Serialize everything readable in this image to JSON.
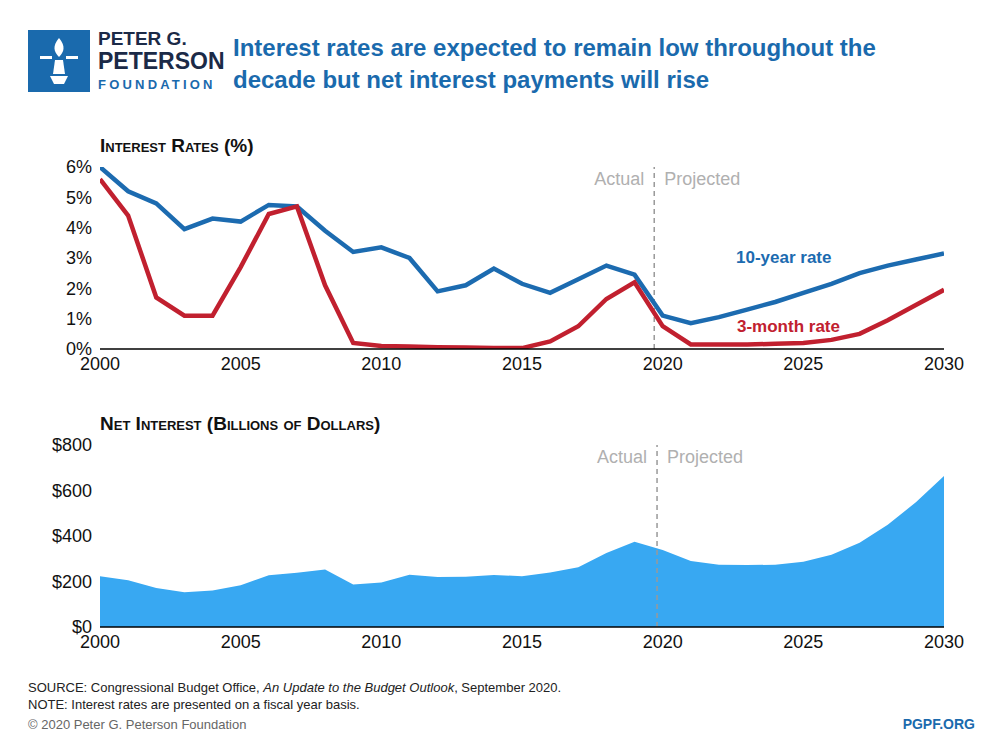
{
  "logo": {
    "lines": [
      "PETER G.",
      "PETERSON"
    ],
    "sub": "FOUNDATION"
  },
  "title": "Interest rates are expected to remain low throughout the decade but net interest payments will rise",
  "chart_data": [
    {
      "type": "line",
      "title": "Interest Rates (%)",
      "x": [
        2000,
        2001,
        2002,
        2003,
        2004,
        2005,
        2006,
        2007,
        2008,
        2009,
        2010,
        2011,
        2012,
        2013,
        2014,
        2015,
        2016,
        2017,
        2018,
        2019,
        2020,
        2021,
        2022,
        2023,
        2024,
        2025,
        2026,
        2027,
        2028,
        2029,
        2030
      ],
      "series": [
        {
          "name": "10-year rate",
          "color": "#1c6bb0",
          "values": [
            6.0,
            5.2,
            4.8,
            3.95,
            4.3,
            4.2,
            4.75,
            4.7,
            3.9,
            3.2,
            3.35,
            3.0,
            1.9,
            2.1,
            2.65,
            2.15,
            1.85,
            2.3,
            2.75,
            2.45,
            1.1,
            0.85,
            1.05,
            1.3,
            1.55,
            1.85,
            2.15,
            2.5,
            2.75,
            2.95,
            3.15
          ]
        },
        {
          "name": "3-month rate",
          "color": "#c1202f",
          "values": [
            5.6,
            4.4,
            1.7,
            1.1,
            1.1,
            2.7,
            4.45,
            4.7,
            2.1,
            0.2,
            0.1,
            0.08,
            0.06,
            0.05,
            0.03,
            0.03,
            0.25,
            0.75,
            1.65,
            2.2,
            0.75,
            0.15,
            0.15,
            0.15,
            0.17,
            0.2,
            0.3,
            0.5,
            0.95,
            1.45,
            1.95
          ]
        }
      ],
      "xlim": [
        2000,
        2030
      ],
      "xticks": [
        2000,
        2005,
        2010,
        2015,
        2020,
        2025,
        2030
      ],
      "ylim": [
        0,
        6
      ],
      "yticks": [
        {
          "value": 0,
          "label": "0%"
        },
        {
          "value": 1,
          "label": "1%"
        },
        {
          "value": 2,
          "label": "2%"
        },
        {
          "value": 3,
          "label": "3%"
        },
        {
          "value": 4,
          "label": "4%"
        },
        {
          "value": 5,
          "label": "5%"
        },
        {
          "value": 6,
          "label": "6%"
        }
      ],
      "grid": false,
      "divider": {
        "x": 2019.7,
        "left_label": "Actual",
        "right_label": "Projected"
      }
    },
    {
      "type": "area",
      "title": "Net Interest (Billions of Dollars)",
      "x": [
        2000,
        2001,
        2002,
        2003,
        2004,
        2005,
        2006,
        2007,
        2008,
        2009,
        2010,
        2011,
        2012,
        2013,
        2014,
        2015,
        2016,
        2017,
        2018,
        2019,
        2020,
        2021,
        2022,
        2023,
        2024,
        2025,
        2026,
        2027,
        2028,
        2029,
        2030
      ],
      "values": [
        223,
        206,
        171,
        153,
        160,
        184,
        227,
        238,
        253,
        187,
        196,
        230,
        220,
        221,
        229,
        223,
        240,
        263,
        325,
        375,
        338,
        290,
        274,
        272,
        274,
        287,
        318,
        370,
        450,
        548,
        664
      ],
      "color": "#38a8f2",
      "xlim": [
        2000,
        2030
      ],
      "xticks": [
        2000,
        2005,
        2010,
        2015,
        2020,
        2025,
        2030
      ],
      "ylim": [
        0,
        800
      ],
      "yticks": [
        {
          "value": 0,
          "label": "$0"
        },
        {
          "value": 200,
          "label": "$200"
        },
        {
          "value": 400,
          "label": "$400"
        },
        {
          "value": 600,
          "label": "$600"
        },
        {
          "value": 800,
          "label": "$800"
        }
      ],
      "grid": false,
      "divider": {
        "x": 2019.8,
        "left_label": "Actual",
        "right_label": "Projected"
      }
    }
  ],
  "footer": {
    "source_parts": [
      "SOURCE: Congressional Budget Office, ",
      "An Update to the Budget Outlook",
      ", September 2020."
    ],
    "note": "NOTE: Interest rates are presented on a fiscal year basis.",
    "copyright": "© 2020 Peter G. Peterson Foundation",
    "website": "PGPF.ORG"
  }
}
